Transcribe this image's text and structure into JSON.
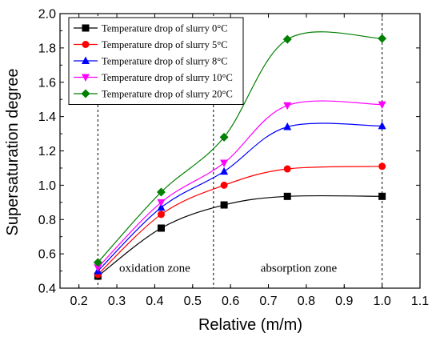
{
  "chart_data": {
    "type": "line",
    "title": "",
    "xlabel": "Relative (m/m)",
    "ylabel": "Supersaturation degree",
    "xlim": [
      0.15,
      1.1
    ],
    "ylim": [
      0.4,
      2.0
    ],
    "xticks": [
      "0.2",
      "0.3",
      "0.4",
      "0.5",
      "0.6",
      "0.7",
      "0.8",
      "0.9",
      "1.0",
      "1.1"
    ],
    "yticks": [
      "0.4",
      "0.6",
      "0.8",
      "1.0",
      "1.2",
      "1.4",
      "1.6",
      "1.8",
      "2.0"
    ],
    "x": [
      0.25,
      0.417,
      0.583,
      0.75,
      1.0
    ],
    "series": [
      {
        "name": "Temperature drop of slurry 0°C",
        "color": "#000000",
        "marker": "square",
        "values": [
          0.47,
          0.75,
          0.885,
          0.935,
          0.935
        ]
      },
      {
        "name": "Temperature drop of slurry 5°C",
        "color": "#ff0000",
        "marker": "circle",
        "values": [
          0.48,
          0.83,
          1.0,
          1.095,
          1.11
        ]
      },
      {
        "name": "Temperature drop of slurry 8°C",
        "color": "#0000ff",
        "marker": "triangle-up",
        "values": [
          0.5,
          0.87,
          1.08,
          1.34,
          1.345
        ]
      },
      {
        "name": "Temperature drop of slurry 10°C",
        "color": "#ff00ff",
        "marker": "triangle-down",
        "values": [
          0.52,
          0.9,
          1.13,
          1.465,
          1.47
        ]
      },
      {
        "name": "Temperature drop of slurry 20°C",
        "color": "#008000",
        "marker": "diamond",
        "values": [
          0.55,
          0.96,
          1.28,
          1.85,
          1.855
        ]
      }
    ],
    "vlines": [
      0.25,
      0.555,
      1.0
    ],
    "annotations": [
      {
        "text": "oxidation zone",
        "x": 0.4,
        "y": 0.52
      },
      {
        "text": "absorption zone",
        "x": 0.78,
        "y": 0.52
      }
    ],
    "grid": false,
    "legend_position": "top-left"
  }
}
